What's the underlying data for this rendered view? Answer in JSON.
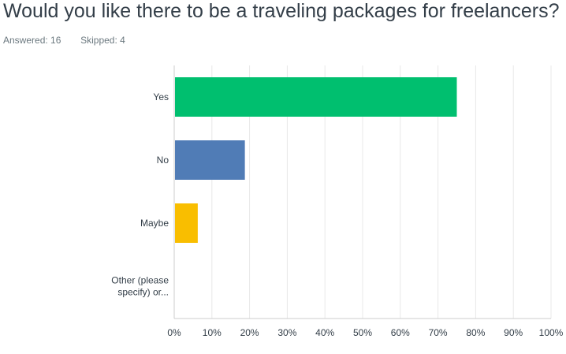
{
  "question": {
    "title": "Would you like there to be a traveling packages for freelancers?"
  },
  "stats": {
    "answered_label": "Answered:",
    "answered_value": "16",
    "skipped_label": "Skipped:",
    "skipped_value": "4"
  },
  "chart_data": {
    "type": "bar",
    "orientation": "horizontal",
    "title": "",
    "xlabel": "",
    "ylabel": "",
    "categories": [
      "Yes",
      "No",
      "Maybe",
      "Other (please specify) or..."
    ],
    "category_lines": [
      [
        "Yes"
      ],
      [
        "No"
      ],
      [
        "Maybe"
      ],
      [
        "Other (please",
        "specify) or..."
      ]
    ],
    "values": [
      75,
      18.75,
      6.25,
      0
    ],
    "colors": [
      "#00bf6f",
      "#507cb6",
      "#f9be00",
      "#6bc8cd"
    ],
    "xlim": [
      0,
      100
    ],
    "x_ticks": [
      "0%",
      "10%",
      "20%",
      "30%",
      "40%",
      "50%",
      "60%",
      "70%",
      "80%",
      "90%",
      "100%"
    ],
    "grid": true,
    "gridline_color": "#e8e8e8",
    "axis_color": "#cccccc"
  }
}
